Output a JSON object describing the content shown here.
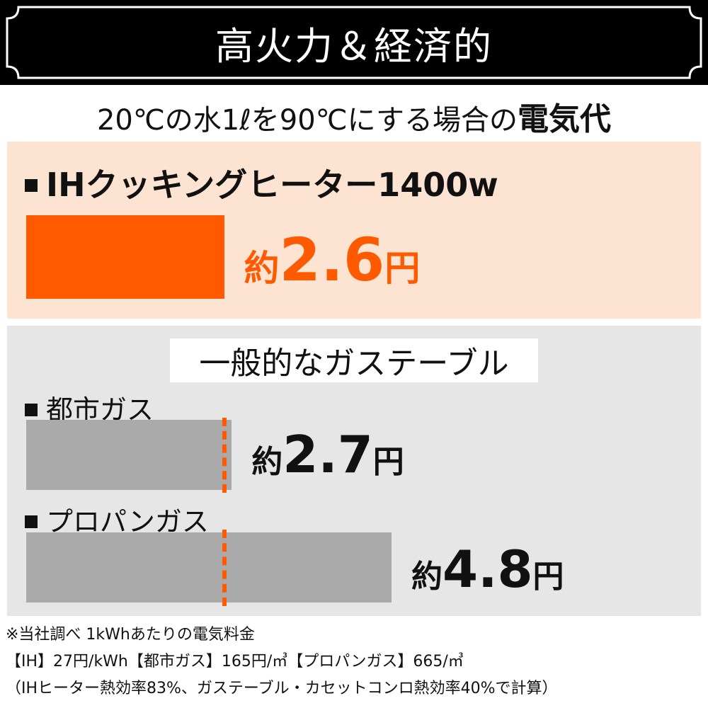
{
  "header": {
    "title": "高火力＆経済的"
  },
  "subtitle": {
    "lead": "20℃の水1ℓを90℃にする場合の",
    "emphasis": "電気代"
  },
  "gas_section_title": "一般的なガステーブル",
  "colors": {
    "ih_bar": "#ff5a00",
    "ih_value": "#ff5a00",
    "gas_bar": "#aaaaaa",
    "ih_panel": "#fde3d2",
    "gas_panel": "#e6e6e6",
    "dash": "#ff5a00"
  },
  "chart_data": {
    "type": "bar",
    "orientation": "horizontal",
    "categories": [
      "IHクッキングヒーター1400w",
      "都市ガス",
      "プロパンガス"
    ],
    "values": [
      2.6,
      2.7,
      4.8
    ],
    "value_labels": [
      {
        "prefix": "約",
        "number": "2.6",
        "unit": "円"
      },
      {
        "prefix": "約",
        "number": "2.7",
        "unit": "円"
      },
      {
        "prefix": "約",
        "number": "4.8",
        "unit": "円"
      }
    ],
    "reference_line_value": 2.6,
    "title": "",
    "xlabel": "",
    "ylabel": ""
  },
  "notes": [
    "※当社調べ 1kWhあたりの電気料金",
    "【IH】27円/kWh【都市ガス】165円/㎥【プロパンガス】665/㎥",
    "（IHヒーター熱効率83%、ガステーブル・カセットコンロ熱効率40%で計算）"
  ]
}
